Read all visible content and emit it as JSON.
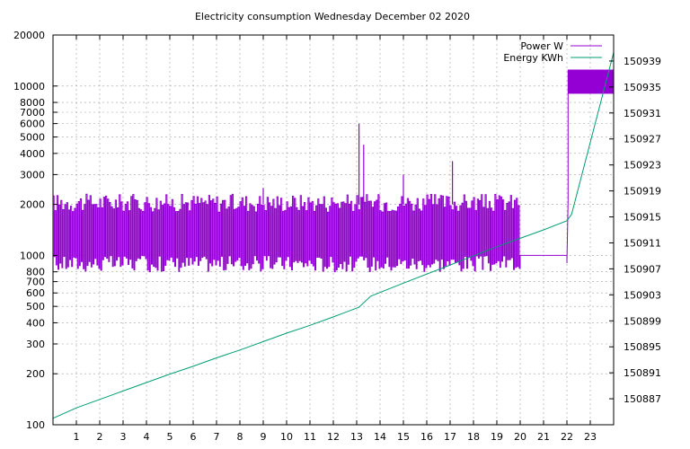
{
  "chart_data": {
    "type": "line",
    "title": "Electricity consumption Wednesday December 02 2020",
    "x_range": [
      0,
      24
    ],
    "x_ticks": [
      "1",
      "2",
      "3",
      "4",
      "5",
      "6",
      "7",
      "8",
      "9",
      "10",
      "11",
      "12",
      "13",
      "14",
      "15",
      "16",
      "17",
      "18",
      "19",
      "20",
      "21",
      "22",
      "23"
    ],
    "y_left": {
      "scale": "log",
      "range": [
        100,
        20000
      ],
      "ticks": [
        "100",
        "200",
        "300",
        "400",
        "500",
        "600",
        "700",
        "800",
        "1000",
        "2000",
        "3000",
        "4000",
        "5000",
        "6000",
        "7000",
        "8000",
        "10000",
        "20000"
      ]
    },
    "y_right": {
      "scale": "linear",
      "range": [
        150883,
        150943
      ],
      "ticks": [
        "150887",
        "150891",
        "150895",
        "150899",
        "150903",
        "150907",
        "150911",
        "150915",
        "150919",
        "150923",
        "150927",
        "150931",
        "150935",
        "150939"
      ]
    },
    "grid": true,
    "legend": {
      "position": "top-right"
    },
    "series": [
      {
        "name": "Power W",
        "axis": "left",
        "color": "#9400d3",
        "pattern": "cycling between about 850 W and 2100 W, roughly every 5 minutes, from 00:00 to 20:00; about 1000 W from 20:00 to 22:00; then about 9000-12500 W from 22:00 to 24:00",
        "points": [
          [
            0,
            1900
          ],
          [
            2,
            2000
          ],
          [
            4,
            2000
          ],
          [
            6,
            1900
          ],
          [
            8,
            1900
          ],
          [
            10,
            2100
          ],
          [
            12,
            2000
          ],
          [
            13.1,
            5500
          ],
          [
            13.3,
            4500
          ],
          [
            14,
            2000
          ],
          [
            16,
            2000
          ],
          [
            18,
            2000
          ],
          [
            20,
            1000
          ],
          [
            21,
            1000
          ],
          [
            22,
            1000
          ],
          [
            22.05,
            2100
          ],
          [
            22.1,
            12500
          ],
          [
            24,
            12500
          ]
        ],
        "spikes": [
          {
            "x": 9,
            "y": 2500
          },
          {
            "x": 13.1,
            "y": 6000
          },
          {
            "x": 13.3,
            "y": 4500
          },
          {
            "x": 15,
            "y": 3000
          },
          {
            "x": 17.1,
            "y": 3600
          }
        ],
        "band": {
          "x_start": 22.05,
          "x_end": 24,
          "low": 9000,
          "high": 12500
        }
      },
      {
        "name": "Energy KWh",
        "axis": "right",
        "color": "#009e73",
        "points": [
          [
            0,
            150884
          ],
          [
            1,
            150885.6
          ],
          [
            2,
            150886.9
          ],
          [
            3,
            150888.2
          ],
          [
            4,
            150889.5
          ],
          [
            5,
            150890.8
          ],
          [
            6,
            150892
          ],
          [
            7,
            150893.3
          ],
          [
            8,
            150894.5
          ],
          [
            9,
            150895.8
          ],
          [
            10,
            150897.1
          ],
          [
            11,
            150898.3
          ],
          [
            12,
            150899.6
          ],
          [
            13.1,
            150901.1
          ],
          [
            13.6,
            150902.8
          ],
          [
            15,
            150904.8
          ],
          [
            17,
            150907.6
          ],
          [
            19,
            150910.4
          ],
          [
            20,
            150911.7
          ],
          [
            21,
            150913
          ],
          [
            22,
            150914.4
          ],
          [
            22.2,
            150915.4
          ],
          [
            24,
            150940.3
          ]
        ]
      }
    ]
  }
}
